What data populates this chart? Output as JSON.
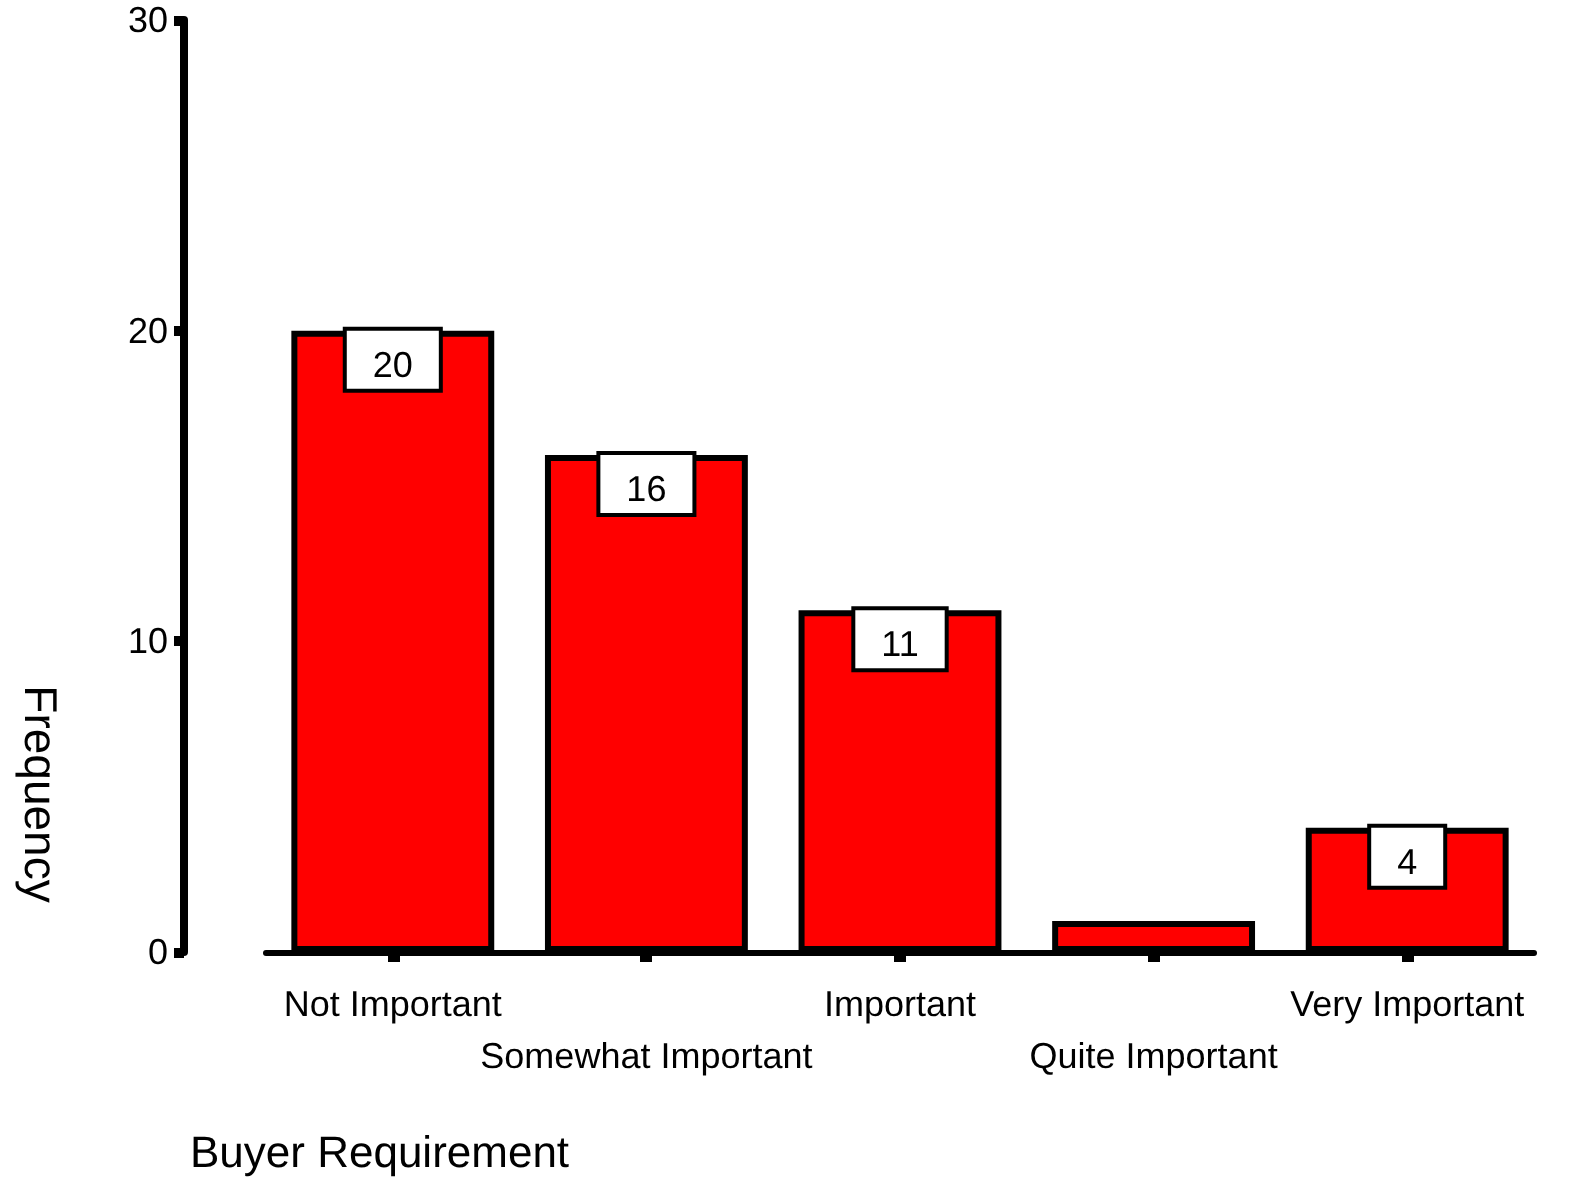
{
  "chart_data": {
    "type": "bar",
    "xlabel": "Buyer Requirement",
    "ylabel": "Frequency",
    "categories": [
      "Not Important",
      "Somewhat Important",
      "Important",
      "Quite Important",
      "Very Important"
    ],
    "values": [
      20,
      16,
      11,
      1,
      4
    ],
    "color": "#ff0000",
    "value_labels": [
      "20",
      "16",
      "11",
      null,
      "4"
    ],
    "ylim": [
      0,
      30
    ],
    "yticks": [
      0,
      10,
      20,
      30
    ]
  }
}
